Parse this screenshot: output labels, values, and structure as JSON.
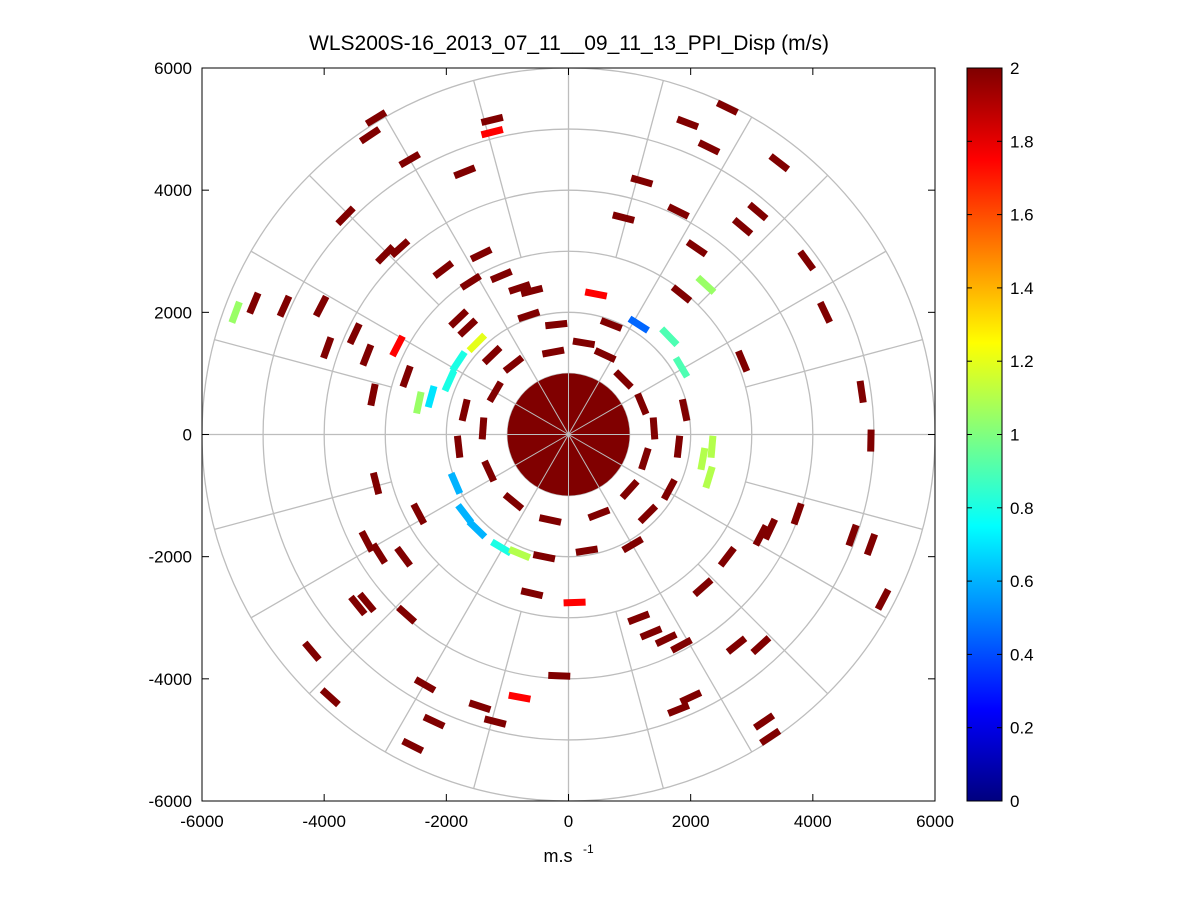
{
  "chart_data": {
    "type": "heatmap",
    "subtype": "polar PPI scatter",
    "title": "WLS200S-16_2013_07_11__09_11_13_PPI_Disp (m/s)",
    "xlabel": "m.s",
    "xlabel_superscript": "-1",
    "ylabel": "",
    "xlim": [
      -6000,
      6000
    ],
    "ylim": [
      -6000,
      6000
    ],
    "xticks": [
      -6000,
      -4000,
      -2000,
      0,
      2000,
      4000,
      6000
    ],
    "yticks": [
      6000,
      4000,
      2000,
      0,
      -2000,
      -4000,
      -6000
    ],
    "xtick_labels": [
      "-6000",
      "-4000",
      "-2000",
      "0",
      "2000",
      "4000",
      "6000"
    ],
    "ytick_labels": [
      "6000",
      "4000",
      "2000",
      "0",
      "-2000",
      "-4000",
      "-6000"
    ],
    "grid": true,
    "polar_grid": {
      "range_rings": [
        1000,
        2000,
        3000,
        4000,
        5000,
        6000
      ],
      "spoke_angles_deg": [
        0,
        30,
        60,
        90,
        120,
        150,
        180,
        210,
        240,
        270,
        300,
        330
      ],
      "inner_spoke_angles_deg": [
        15,
        45,
        75,
        105,
        135,
        165,
        195,
        225,
        255,
        285,
        315,
        345
      ]
    },
    "colorbar": {
      "min": 0,
      "max": 2,
      "tick_labels": [
        "2",
        "1.8",
        "1.6",
        "1.4",
        "1.2",
        "1",
        "0.8",
        "0.6",
        "0.4",
        "0.2",
        "0"
      ],
      "tick_values": [
        2,
        1.8,
        1.6,
        1.4,
        1.2,
        1,
        0.8,
        0.6,
        0.4,
        0.2,
        0
      ],
      "colormap": "jet"
    },
    "central_disk": {
      "radius": 1000,
      "value": 2
    },
    "points": [
      {
        "x": -1250,
        "y": 5150,
        "v": 2
      },
      {
        "x": -1250,
        "y": 4950,
        "v": 1.75
      },
      {
        "x": -3150,
        "y": 5180,
        "v": 2
      },
      {
        "x": -3250,
        "y": 4900,
        "v": 2
      },
      {
        "x": -2600,
        "y": 4500,
        "v": 2
      },
      {
        "x": -1700,
        "y": 4300,
        "v": 2
      },
      {
        "x": -3650,
        "y": 3580,
        "v": 2
      },
      {
        "x": -3000,
        "y": 2950,
        "v": 2
      },
      {
        "x": -2760,
        "y": 3050,
        "v": 2
      },
      {
        "x": -1430,
        "y": 2950,
        "v": 2
      },
      {
        "x": -2050,
        "y": 2700,
        "v": 2
      },
      {
        "x": -1600,
        "y": 2500,
        "v": 2
      },
      {
        "x": -5450,
        "y": 2000,
        "v": 1.05
      },
      {
        "x": -5150,
        "y": 2150,
        "v": 2
      },
      {
        "x": -4650,
        "y": 2100,
        "v": 2
      },
      {
        "x": -4050,
        "y": 2100,
        "v": 2
      },
      {
        "x": -3950,
        "y": 1420,
        "v": 2
      },
      {
        "x": -3500,
        "y": 1650,
        "v": 2
      },
      {
        "x": -3300,
        "y": 1300,
        "v": 2
      },
      {
        "x": -2800,
        "y": 1450,
        "v": 1.75
      },
      {
        "x": -2650,
        "y": 950,
        "v": 2
      },
      {
        "x": -3200,
        "y": 650,
        "v": 2
      },
      {
        "x": -2450,
        "y": 520,
        "v": 1.05
      },
      {
        "x": -2250,
        "y": 620,
        "v": 0.7
      },
      {
        "x": -1800,
        "y": 1900,
        "v": 2
      },
      {
        "x": -1650,
        "y": 1750,
        "v": 2
      },
      {
        "x": -1100,
        "y": 2600,
        "v": 2
      },
      {
        "x": -800,
        "y": 2400,
        "v": 2
      },
      {
        "x": -600,
        "y": 2350,
        "v": 2
      },
      {
        "x": -1500,
        "y": 1500,
        "v": 1.2
      },
      {
        "x": -1800,
        "y": 1200,
        "v": 0.8
      },
      {
        "x": -1950,
        "y": 880,
        "v": 0.8
      },
      {
        "x": 1200,
        "y": 4150,
        "v": 2
      },
      {
        "x": 900,
        "y": 3550,
        "v": 2
      },
      {
        "x": 1950,
        "y": 5100,
        "v": 2
      },
      {
        "x": 2600,
        "y": 5350,
        "v": 2
      },
      {
        "x": 2300,
        "y": 4700,
        "v": 2
      },
      {
        "x": 3450,
        "y": 4450,
        "v": 2
      },
      {
        "x": 3100,
        "y": 3650,
        "v": 2
      },
      {
        "x": 2850,
        "y": 3400,
        "v": 2
      },
      {
        "x": 1800,
        "y": 3650,
        "v": 2
      },
      {
        "x": 2100,
        "y": 3050,
        "v": 2
      },
      {
        "x": 2250,
        "y": 2450,
        "v": 1.05
      },
      {
        "x": 1850,
        "y": 2300,
        "v": 2
      },
      {
        "x": 3900,
        "y": 2850,
        "v": 2
      },
      {
        "x": 4200,
        "y": 2000,
        "v": 2
      },
      {
        "x": 2850,
        "y": 1200,
        "v": 2
      },
      {
        "x": 4800,
        "y": 700,
        "v": 2
      },
      {
        "x": 4950,
        "y": -100,
        "v": 2
      },
      {
        "x": 450,
        "y": 2300,
        "v": 1.75
      },
      {
        "x": 1150,
        "y": 1800,
        "v": 0.45
      },
      {
        "x": 1650,
        "y": 1600,
        "v": 0.9
      },
      {
        "x": 1850,
        "y": 1100,
        "v": 0.9
      },
      {
        "x": 2200,
        "y": -400,
        "v": 1.1
      },
      {
        "x": 2350,
        "y": -200,
        "v": 1.1
      },
      {
        "x": 2300,
        "y": -700,
        "v": 1.1
      },
      {
        "x": -2450,
        "y": -1300,
        "v": 2
      },
      {
        "x": -3150,
        "y": -800,
        "v": 2
      },
      {
        "x": -3300,
        "y": -1750,
        "v": 2
      },
      {
        "x": -3100,
        "y": -1950,
        "v": 2
      },
      {
        "x": -2700,
        "y": -2000,
        "v": 2
      },
      {
        "x": -3450,
        "y": -2800,
        "v": 2
      },
      {
        "x": -3300,
        "y": -2750,
        "v": 2
      },
      {
        "x": -2650,
        "y": -2950,
        "v": 2
      },
      {
        "x": -4200,
        "y": -3550,
        "v": 2
      },
      {
        "x": -3900,
        "y": -4300,
        "v": 2
      },
      {
        "x": -2350,
        "y": -4100,
        "v": 2
      },
      {
        "x": -1450,
        "y": -4450,
        "v": 2
      },
      {
        "x": -1200,
        "y": -4700,
        "v": 2
      },
      {
        "x": -2200,
        "y": -4700,
        "v": 2
      },
      {
        "x": -2550,
        "y": -5100,
        "v": 2
      },
      {
        "x": -800,
        "y": -4300,
        "v": 1.75
      },
      {
        "x": -600,
        "y": -2600,
        "v": 2
      },
      {
        "x": 100,
        "y": -2750,
        "v": 1.75
      },
      {
        "x": -150,
        "y": -3950,
        "v": 2
      },
      {
        "x": 1150,
        "y": -3000,
        "v": 2
      },
      {
        "x": 1350,
        "y": -3250,
        "v": 2
      },
      {
        "x": 1600,
        "y": -3350,
        "v": 2
      },
      {
        "x": 1850,
        "y": -3450,
        "v": 2
      },
      {
        "x": 2200,
        "y": -2500,
        "v": 2
      },
      {
        "x": 2750,
        "y": -3450,
        "v": 2
      },
      {
        "x": 3150,
        "y": -3450,
        "v": 2
      },
      {
        "x": 2600,
        "y": -2000,
        "v": 2
      },
      {
        "x": 3150,
        "y": -1650,
        "v": 2
      },
      {
        "x": 3300,
        "y": -1550,
        "v": 2
      },
      {
        "x": 3750,
        "y": -1300,
        "v": 2
      },
      {
        "x": 4650,
        "y": -1650,
        "v": 2
      },
      {
        "x": 4950,
        "y": -1800,
        "v": 2
      },
      {
        "x": 5150,
        "y": -2700,
        "v": 2
      },
      {
        "x": 2000,
        "y": -4300,
        "v": 2
      },
      {
        "x": 1800,
        "y": -4500,
        "v": 2
      },
      {
        "x": 3200,
        "y": -4700,
        "v": 2
      },
      {
        "x": 3300,
        "y": -4950,
        "v": 2
      },
      {
        "x": 1050,
        "y": -1800,
        "v": 2
      },
      {
        "x": -1700,
        "y": -1300,
        "v": 0.6
      },
      {
        "x": -1500,
        "y": -1550,
        "v": 0.6
      },
      {
        "x": -1100,
        "y": -1850,
        "v": 0.8
      },
      {
        "x": -800,
        "y": -1950,
        "v": 1.1
      },
      {
        "x": -1850,
        "y": -800,
        "v": 0.6
      },
      {
        "x": -650,
        "y": 1950,
        "v": 2
      },
      {
        "x": -250,
        "y": 1350,
        "v": 2
      },
      {
        "x": 250,
        "y": 1500,
        "v": 2
      },
      {
        "x": 600,
        "y": 1300,
        "v": 2
      },
      {
        "x": 900,
        "y": 900,
        "v": 2
      },
      {
        "x": 1200,
        "y": 500,
        "v": 2
      },
      {
        "x": 1400,
        "y": 100,
        "v": 2
      },
      {
        "x": 1250,
        "y": -400,
        "v": 2
      },
      {
        "x": 1000,
        "y": -900,
        "v": 2
      },
      {
        "x": 500,
        "y": -1300,
        "v": 2
      },
      {
        "x": -300,
        "y": -1400,
        "v": 2
      },
      {
        "x": -900,
        "y": -1100,
        "v": 2
      },
      {
        "x": -1300,
        "y": -600,
        "v": 2
      },
      {
        "x": -1400,
        "y": 100,
        "v": 2
      },
      {
        "x": -1200,
        "y": 700,
        "v": 2
      },
      {
        "x": -900,
        "y": 1150,
        "v": 2
      },
      {
        "x": 1800,
        "y": -200,
        "v": 2
      },
      {
        "x": 1650,
        "y": -900,
        "v": 2
      },
      {
        "x": 1900,
        "y": 400,
        "v": 2
      },
      {
        "x": -1800,
        "y": -200,
        "v": 2
      },
      {
        "x": -1700,
        "y": 400,
        "v": 2
      },
      {
        "x": 700,
        "y": 1800,
        "v": 2
      },
      {
        "x": -200,
        "y": 1800,
        "v": 2
      },
      {
        "x": -1250,
        "y": 1300,
        "v": 2
      },
      {
        "x": 1300,
        "y": -1300,
        "v": 2
      },
      {
        "x": 300,
        "y": -1900,
        "v": 2
      },
      {
        "x": -400,
        "y": -2000,
        "v": 2
      }
    ]
  }
}
